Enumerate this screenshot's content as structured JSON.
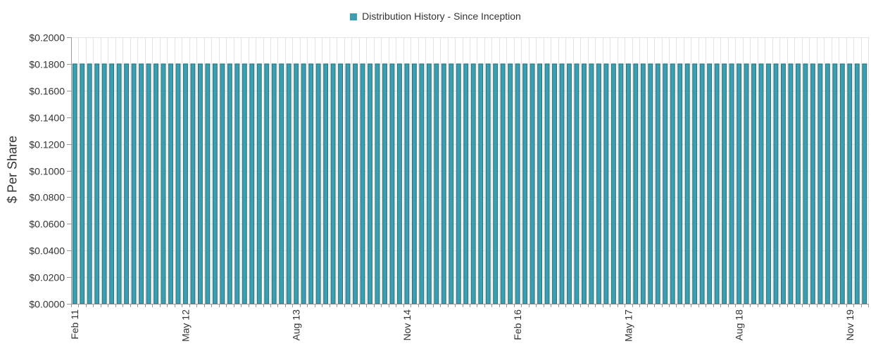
{
  "chart_data": {
    "type": "bar",
    "legend": "Distribution History - Since Inception",
    "ylabel": "$ Per Share",
    "ylim": [
      0,
      0.2
    ],
    "y_ticks": [
      "$0.0000",
      "$0.0200",
      "$0.0400",
      "$0.0600",
      "$0.0800",
      "$0.1000",
      "$0.1200",
      "$0.1400",
      "$0.1600",
      "$0.1800",
      "$0.2000"
    ],
    "x_tick_labels": [
      "Feb 11",
      "May 12",
      "Aug 13",
      "Nov 14",
      "Feb 16",
      "May 17",
      "Aug 18",
      "Nov 19"
    ],
    "first_period": "Feb 11",
    "frequency": "monthly",
    "series_color": "#3a9fb0",
    "series_edge": "#2a6f7a",
    "values": [
      0.18,
      0.18,
      0.18,
      0.18,
      0.18,
      0.18,
      0.18,
      0.18,
      0.18,
      0.18,
      0.18,
      0.18,
      0.18,
      0.18,
      0.18,
      0.18,
      0.18,
      0.18,
      0.18,
      0.18,
      0.18,
      0.18,
      0.18,
      0.18,
      0.18,
      0.18,
      0.18,
      0.18,
      0.18,
      0.18,
      0.18,
      0.18,
      0.18,
      0.18,
      0.18,
      0.18,
      0.18,
      0.18,
      0.18,
      0.18,
      0.18,
      0.18,
      0.18,
      0.18,
      0.18,
      0.18,
      0.18,
      0.18,
      0.18,
      0.18,
      0.18,
      0.18,
      0.18,
      0.18,
      0.18,
      0.18,
      0.18,
      0.18,
      0.18,
      0.18,
      0.18,
      0.18,
      0.18,
      0.18,
      0.18,
      0.18,
      0.18,
      0.18,
      0.18,
      0.18,
      0.18,
      0.18,
      0.18,
      0.18,
      0.18,
      0.18,
      0.18,
      0.18,
      0.18,
      0.18,
      0.18,
      0.18,
      0.18,
      0.18,
      0.18,
      0.18,
      0.18,
      0.18,
      0.18,
      0.18,
      0.18,
      0.18,
      0.18,
      0.18,
      0.18,
      0.18,
      0.18,
      0.18,
      0.18,
      0.18,
      0.18,
      0.18,
      0.18,
      0.18,
      0.18,
      0.18,
      0.18,
      0.18
    ],
    "grid": true,
    "legend_position": "top-center"
  }
}
